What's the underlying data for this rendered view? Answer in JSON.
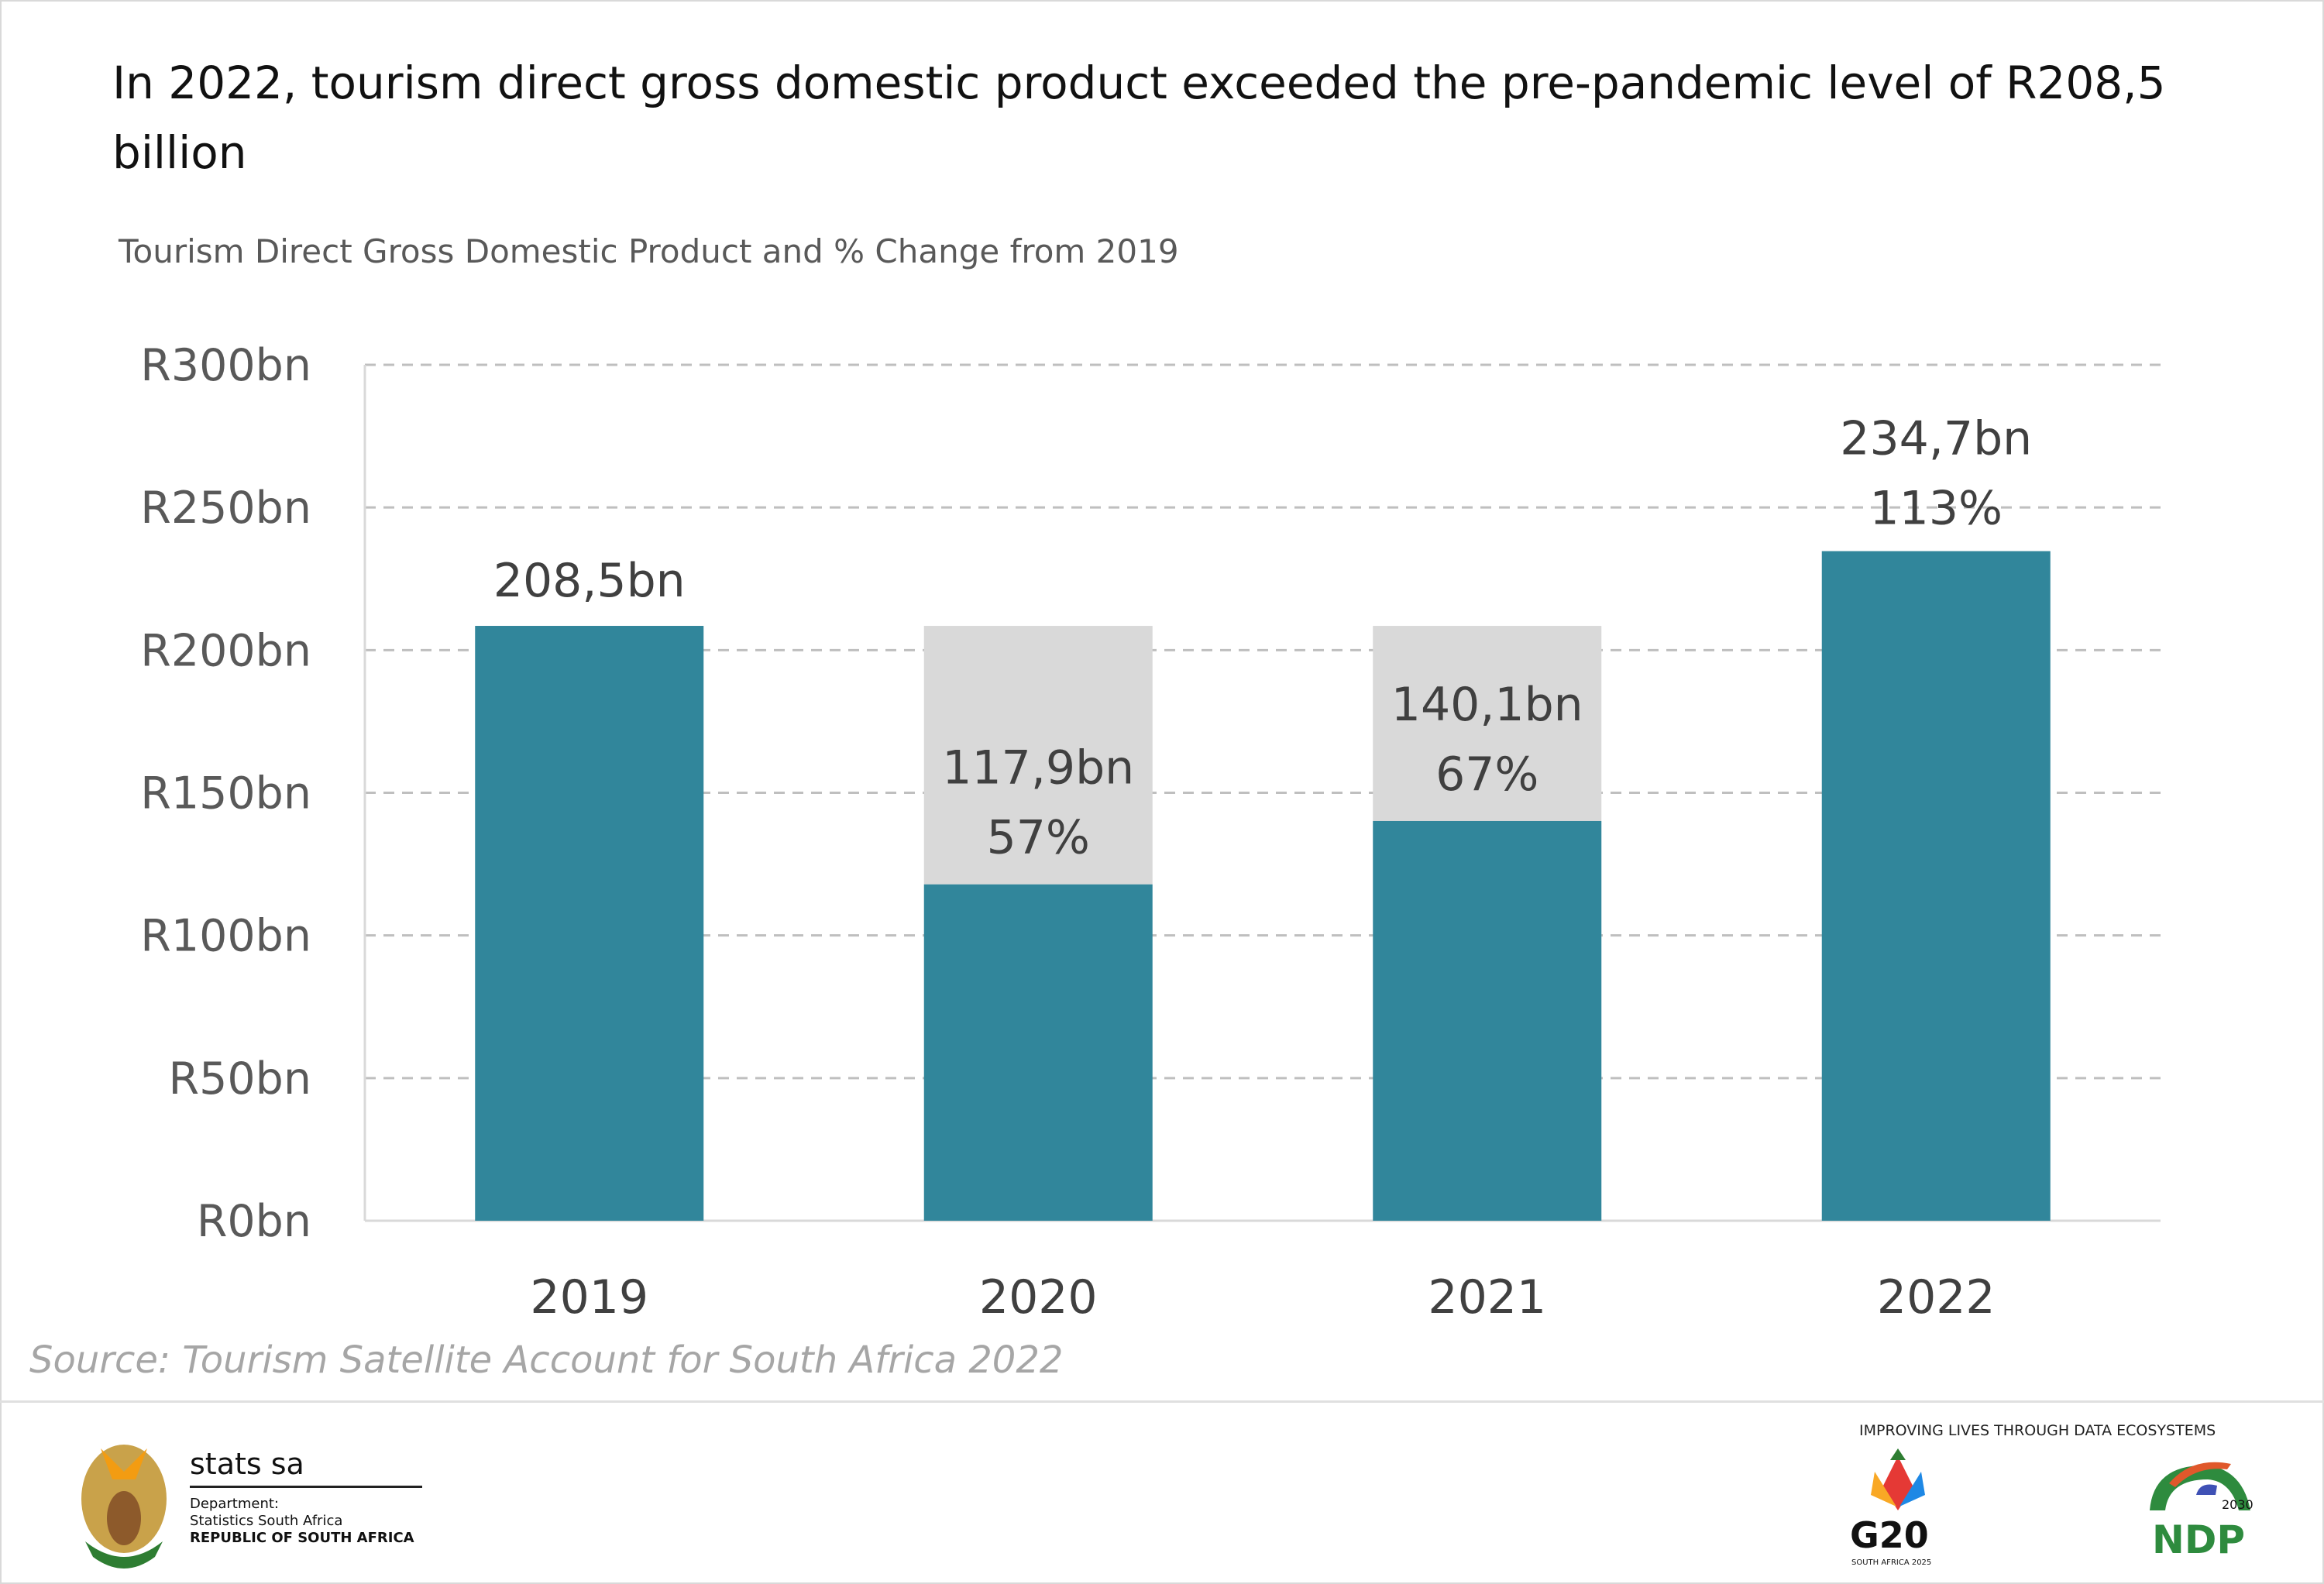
{
  "header": {
    "title": "In 2022, tourism direct gross domestic product exceeded the pre-pandemic level of R208,5 billion",
    "subtitle": "Tourism Direct Gross Domestic Product  and % Change from 2019"
  },
  "chart_data": {
    "type": "bar",
    "categories": [
      "2019",
      "2020",
      "2021",
      "2022"
    ],
    "series": [
      {
        "values": [
          208.5,
          117.9,
          140.1,
          234.7
        ],
        "color": "#31869b"
      },
      {
        "values": [
          208.5,
          208.5,
          208.5,
          null
        ],
        "color": "#d9d9d9"
      }
    ],
    "data_labels": [
      {
        "value": "208,5bn",
        "pct": ""
      },
      {
        "value": "117,9bn",
        "pct": "57%"
      },
      {
        "value": "140,1bn",
        "pct": "67%"
      },
      {
        "value": "234,7bn",
        "pct": "113%"
      }
    ],
    "yticks": [
      0,
      50,
      100,
      150,
      200,
      250,
      300
    ],
    "ytick_labels": [
      "R0bn",
      "R50bn",
      "R100bn",
      "R150bn",
      "R200bn",
      "R250bn",
      "R300bn"
    ],
    "ylim": [
      0,
      300
    ],
    "grid": true,
    "xlabel": "",
    "ylabel": ""
  },
  "source": "Source: Tourism Satellite Account for South Africa 2022",
  "footer": {
    "logo_name": "stats sa",
    "dept_line1": "Department:",
    "dept_line2": "Statistics South Africa",
    "dept_line3": "REPUBLIC OF SOUTH AFRICA",
    "tagline": "IMPROVING LIVES THROUGH DATA ECOSYSTEMS",
    "g20": "G20",
    "g20_sub": "SOUTH AFRICA 2025",
    "ndp": "NDP",
    "ndp_year": "2030"
  }
}
